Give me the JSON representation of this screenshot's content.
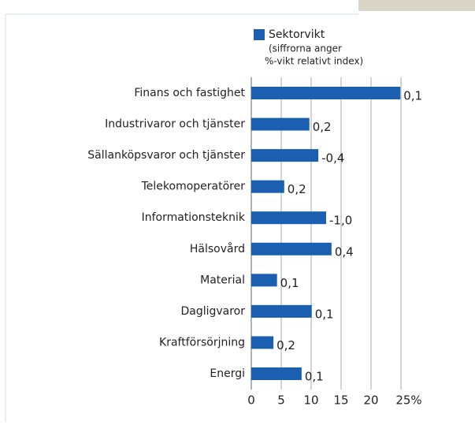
{
  "chart_data": {
    "type": "bar",
    "orientation": "horizontal",
    "legend": {
      "name": "Sektorvikt",
      "note": [
        "(siffrorna anger",
        "%-vikt relativt index)"
      ]
    },
    "categories": [
      "Finans och fastighet",
      "Industrivaror och tjänster",
      "Sällanköpsvaror och tjänster",
      "Telekomoperatörer",
      "Informationsteknik",
      "Hälsovård",
      "Material",
      "Dagligvaror",
      "Kraftförsörjning",
      "Energi"
    ],
    "values": [
      24.9,
      9.7,
      11.2,
      5.5,
      12.5,
      13.4,
      4.3,
      10.1,
      3.7,
      8.4
    ],
    "relative_labels": [
      "0,1",
      "0,2",
      "-0,4",
      "0,2",
      "-1,0",
      "0,4",
      "0,1",
      "0,1",
      "0,2",
      "0,1"
    ],
    "color": "#1a5fb0",
    "xlim": [
      0,
      25
    ],
    "xticks": [
      0,
      5,
      10,
      15,
      20,
      {
        "value": 25,
        "label": "25%"
      }
    ],
    "grid": true
  }
}
